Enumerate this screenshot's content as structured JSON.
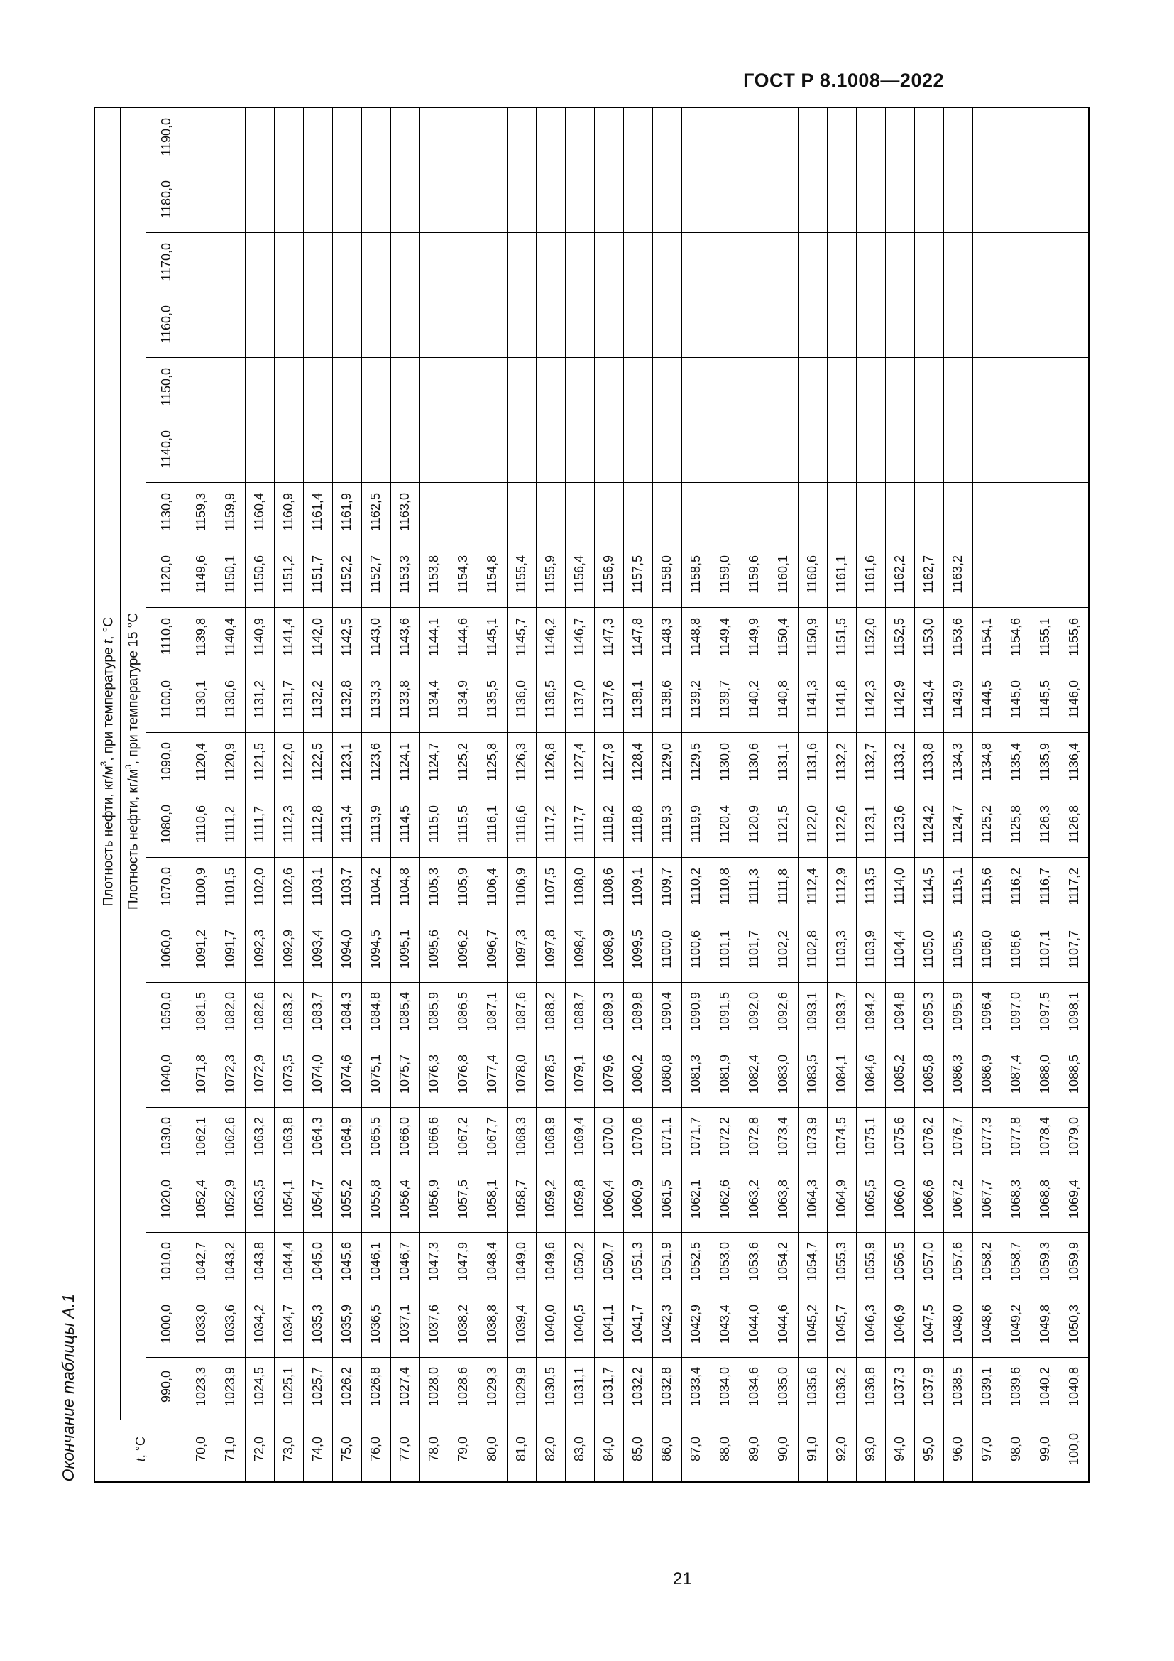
{
  "page": {
    "doc_header": "ГОСТ Р 8.1008—2022",
    "table_caption": "Окончание таблицы А.1",
    "page_number": "21"
  },
  "table": {
    "header_group_segments": [
      {
        "text": "Плотность нефти, кг/м"
      },
      {
        "sup": "3"
      },
      {
        "text": ", при температуре "
      },
      {
        "i": "t"
      },
      {
        "text": ", °C"
      }
    ],
    "header_sub_segments": [
      {
        "text": "Плотность нефти, кг/м"
      },
      {
        "sup": "3"
      },
      {
        "text": ", при температуре 15 °C"
      }
    ],
    "corner_segments": [
      {
        "i": "t"
      },
      {
        "text": ", °C"
      }
    ],
    "t_values": [
      "70,0",
      "71,0",
      "72,0",
      "73,0",
      "74,0",
      "75,0",
      "76,0",
      "77,0",
      "78,0",
      "79,0",
      "80,0",
      "81,0",
      "82,0",
      "83,0",
      "84,0",
      "85,0",
      "86,0",
      "87,0",
      "88,0",
      "89,0",
      "90,0",
      "91,0",
      "92,0",
      "93,0",
      "94,0",
      "95,0",
      "96,0",
      "97,0",
      "98,0",
      "99,0",
      "100,0"
    ],
    "rows": [
      {
        "label": "1190,0",
        "values": []
      },
      {
        "label": "1180,0",
        "values": []
      },
      {
        "label": "1170,0",
        "values": []
      },
      {
        "label": "1160,0",
        "values": []
      },
      {
        "label": "1150,0",
        "values": []
      },
      {
        "label": "1140,0",
        "values": []
      },
      {
        "label": "1130,0",
        "values": [
          "1159,3",
          "1159,9",
          "1160,4",
          "1160,9",
          "1161,4",
          "1161,9",
          "1162,5",
          "1163,0"
        ]
      },
      {
        "label": "1120,0",
        "values": [
          "1149,6",
          "1150,1",
          "1150,6",
          "1151,2",
          "1151,7",
          "1152,2",
          "1152,7",
          "1153,3",
          "1153,8",
          "1154,3",
          "1154,8",
          "1155,4",
          "1155,9",
          "1156,4",
          "1156,9",
          "1157,5",
          "1158,0",
          "1158,5",
          "1159,0",
          "1159,6",
          "1160,1",
          "1160,6",
          "1161,1",
          "1161,6",
          "1162,2",
          "1162,7",
          "1163,2"
        ]
      },
      {
        "label": "1110,0",
        "values": [
          "1139,8",
          "1140,4",
          "1140,9",
          "1141,4",
          "1142,0",
          "1142,5",
          "1143,0",
          "1143,6",
          "1144,1",
          "1144,6",
          "1145,1",
          "1145,7",
          "1146,2",
          "1146,7",
          "1147,3",
          "1147,8",
          "1148,3",
          "1148,8",
          "1149,4",
          "1149,9",
          "1150,4",
          "1150,9",
          "1151,5",
          "1152,0",
          "1152,5",
          "1153,0",
          "1153,6",
          "1154,1",
          "1154,6",
          "1155,1",
          "1155,6"
        ]
      },
      {
        "label": "1100,0",
        "values": [
          "1130,1",
          "1130,6",
          "1131,2",
          "1131,7",
          "1132,2",
          "1132,8",
          "1133,3",
          "1133,8",
          "1134,4",
          "1134,9",
          "1135,5",
          "1136,0",
          "1136,5",
          "1137,0",
          "1137,6",
          "1138,1",
          "1138,6",
          "1139,2",
          "1139,7",
          "1140,2",
          "1140,8",
          "1141,3",
          "1141,8",
          "1142,3",
          "1142,9",
          "1143,4",
          "1143,9",
          "1144,5",
          "1145,0",
          "1145,5",
          "1146,0"
        ]
      },
      {
        "label": "1090,0",
        "values": [
          "1120,4",
          "1120,9",
          "1121,5",
          "1122,0",
          "1122,5",
          "1123,1",
          "1123,6",
          "1124,1",
          "1124,7",
          "1125,2",
          "1125,8",
          "1126,3",
          "1126,8",
          "1127,4",
          "1127,9",
          "1128,4",
          "1129,0",
          "1129,5",
          "1130,0",
          "1130,6",
          "1131,1",
          "1131,6",
          "1132,2",
          "1132,7",
          "1133,2",
          "1133,8",
          "1134,3",
          "1134,8",
          "1135,4",
          "1135,9",
          "1136,4"
        ]
      },
      {
        "label": "1080,0",
        "values": [
          "1110,6",
          "1111,2",
          "1111,7",
          "1112,3",
          "1112,8",
          "1113,4",
          "1113,9",
          "1114,5",
          "1115,0",
          "1115,5",
          "1116,1",
          "1116,6",
          "1117,2",
          "1117,7",
          "1118,2",
          "1118,8",
          "1119,3",
          "1119,9",
          "1120,4",
          "1120,9",
          "1121,5",
          "1122,0",
          "1122,6",
          "1123,1",
          "1123,6",
          "1124,2",
          "1124,7",
          "1125,2",
          "1125,8",
          "1126,3",
          "1126,8"
        ]
      },
      {
        "label": "1070,0",
        "values": [
          "1100,9",
          "1101,5",
          "1102,0",
          "1102,6",
          "1103,1",
          "1103,7",
          "1104,2",
          "1104,8",
          "1105,3",
          "1105,9",
          "1106,4",
          "1106,9",
          "1107,5",
          "1108,0",
          "1108,6",
          "1109,1",
          "1109,7",
          "1110,2",
          "1110,8",
          "1111,3",
          "1111,8",
          "1112,4",
          "1112,9",
          "1113,5",
          "1114,0",
          "1114,5",
          "1115,1",
          "1115,6",
          "1116,2",
          "1116,7",
          "1117,2"
        ]
      },
      {
        "label": "1060,0",
        "values": [
          "1091,2",
          "1091,7",
          "1092,3",
          "1092,9",
          "1093,4",
          "1094,0",
          "1094,5",
          "1095,1",
          "1095,6",
          "1096,2",
          "1096,7",
          "1097,3",
          "1097,8",
          "1098,4",
          "1098,9",
          "1099,5",
          "1100,0",
          "1100,6",
          "1101,1",
          "1101,7",
          "1102,2",
          "1102,8",
          "1103,3",
          "1103,9",
          "1104,4",
          "1105,0",
          "1105,5",
          "1106,0",
          "1106,6",
          "1107,1",
          "1107,7"
        ]
      },
      {
        "label": "1050,0",
        "values": [
          "1081,5",
          "1082,0",
          "1082,6",
          "1083,2",
          "1083,7",
          "1084,3",
          "1084,8",
          "1085,4",
          "1085,9",
          "1086,5",
          "1087,1",
          "1087,6",
          "1088,2",
          "1088,7",
          "1089,3",
          "1089,8",
          "1090,4",
          "1090,9",
          "1091,5",
          "1092,0",
          "1092,6",
          "1093,1",
          "1093,7",
          "1094,2",
          "1094,8",
          "1095,3",
          "1095,9",
          "1096,4",
          "1097,0",
          "1097,5",
          "1098,1"
        ]
      },
      {
        "label": "1040,0",
        "values": [
          "1071,8",
          "1072,3",
          "1072,9",
          "1073,5",
          "1074,0",
          "1074,6",
          "1075,1",
          "1075,7",
          "1076,3",
          "1076,8",
          "1077,4",
          "1078,0",
          "1078,5",
          "1079,1",
          "1079,6",
          "1080,2",
          "1080,8",
          "1081,3",
          "1081,9",
          "1082,4",
          "1083,0",
          "1083,5",
          "1084,1",
          "1084,6",
          "1085,2",
          "1085,8",
          "1086,3",
          "1086,9",
          "1087,4",
          "1088,0",
          "1088,5"
        ]
      },
      {
        "label": "1030,0",
        "values": [
          "1062,1",
          "1062,6",
          "1063,2",
          "1063,8",
          "1064,3",
          "1064,9",
          "1065,5",
          "1066,0",
          "1066,6",
          "1067,2",
          "1067,7",
          "1068,3",
          "1068,9",
          "1069,4",
          "1070,0",
          "1070,6",
          "1071,1",
          "1071,7",
          "1072,2",
          "1072,8",
          "1073,4",
          "1073,9",
          "1074,5",
          "1075,1",
          "1075,6",
          "1076,2",
          "1076,7",
          "1077,3",
          "1077,8",
          "1078,4",
          "1079,0"
        ]
      },
      {
        "label": "1020,0",
        "values": [
          "1052,4",
          "1052,9",
          "1053,5",
          "1054,1",
          "1054,7",
          "1055,2",
          "1055,8",
          "1056,4",
          "1056,9",
          "1057,5",
          "1058,1",
          "1058,7",
          "1059,2",
          "1059,8",
          "1060,4",
          "1060,9",
          "1061,5",
          "1062,1",
          "1062,6",
          "1063,2",
          "1063,8",
          "1064,3",
          "1064,9",
          "1065,5",
          "1066,0",
          "1066,6",
          "1067,2",
          "1067,7",
          "1068,3",
          "1068,8",
          "1069,4"
        ]
      },
      {
        "label": "1010,0",
        "values": [
          "1042,7",
          "1043,2",
          "1043,8",
          "1044,4",
          "1045,0",
          "1045,6",
          "1046,1",
          "1046,7",
          "1047,3",
          "1047,9",
          "1048,4",
          "1049,0",
          "1049,6",
          "1050,2",
          "1050,7",
          "1051,3",
          "1051,9",
          "1052,5",
          "1053,0",
          "1053,6",
          "1054,2",
          "1054,7",
          "1055,3",
          "1055,9",
          "1056,5",
          "1057,0",
          "1057,6",
          "1058,2",
          "1058,7",
          "1059,3",
          "1059,9"
        ]
      },
      {
        "label": "1000,0",
        "values": [
          "1033,0",
          "1033,6",
          "1034,2",
          "1034,7",
          "1035,3",
          "1035,9",
          "1036,5",
          "1037,1",
          "1037,6",
          "1038,2",
          "1038,8",
          "1039,4",
          "1040,0",
          "1040,5",
          "1041,1",
          "1041,7",
          "1042,3",
          "1042,9",
          "1043,4",
          "1044,0",
          "1044,6",
          "1045,2",
          "1045,7",
          "1046,3",
          "1046,9",
          "1047,5",
          "1048,0",
          "1048,6",
          "1049,2",
          "1049,8",
          "1050,3"
        ]
      },
      {
        "label": "990,0",
        "values": [
          "1023,3",
          "1023,9",
          "1024,5",
          "1025,1",
          "1025,7",
          "1026,2",
          "1026,8",
          "1027,4",
          "1028,0",
          "1028,6",
          "1029,3",
          "1029,9",
          "1030,5",
          "1031,1",
          "1031,7",
          "1032,2",
          "1032,8",
          "1033,4",
          "1034,0",
          "1034,6",
          "1035,0",
          "1035,6",
          "1036,2",
          "1036,8",
          "1037,3",
          "1037,9",
          "1038,5",
          "1039,1",
          "1039,6",
          "1040,2",
          "1040,8"
        ]
      }
    ]
  }
}
